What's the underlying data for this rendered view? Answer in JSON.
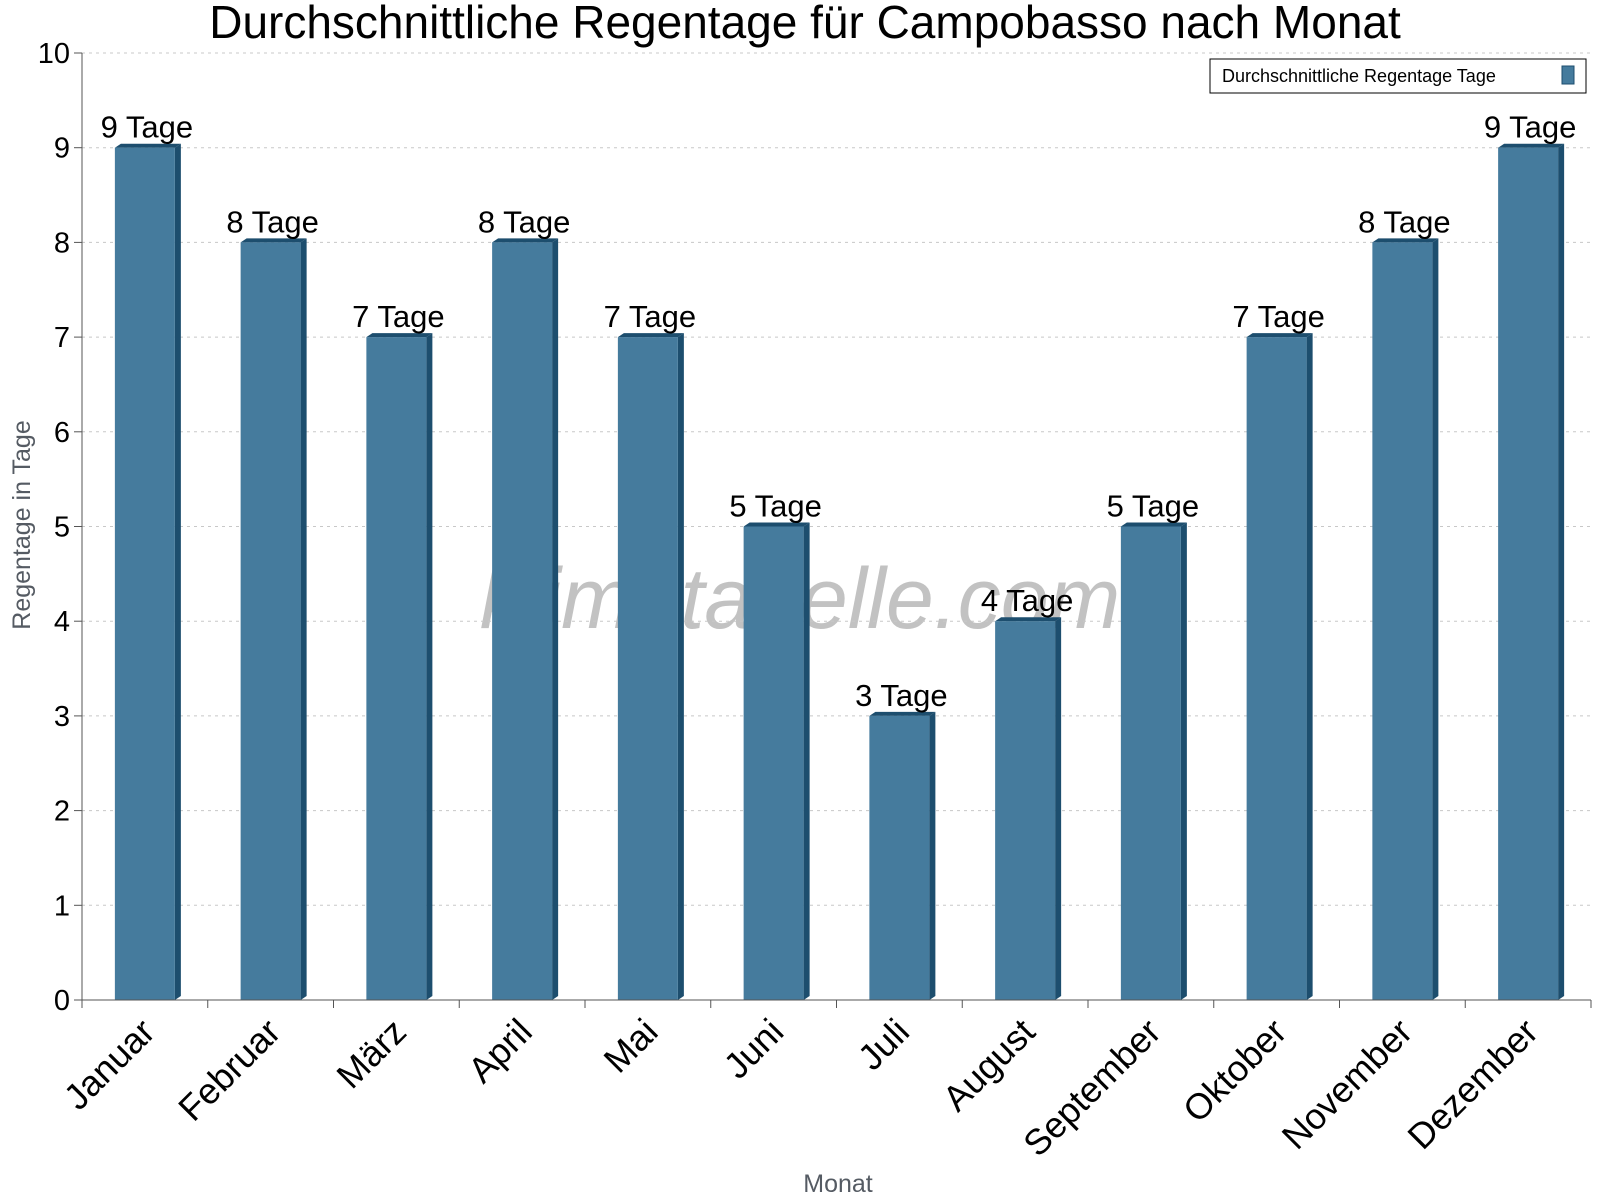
{
  "chart_data": {
    "type": "bar",
    "title": "Durchschnittliche Regentage für Campobasso nach Monat",
    "xlabel": "Monat",
    "ylabel": "Regentage in Tage",
    "categories": [
      "Januar",
      "Februar",
      "März",
      "April",
      "Mai",
      "Juni",
      "Juli",
      "August",
      "September",
      "Oktober",
      "November",
      "Dezember"
    ],
    "series": [
      {
        "name": "Durchschnittliche Regentage Tage",
        "values": [
          9,
          8,
          7,
          8,
          7,
          5,
          3,
          4,
          5,
          7,
          8,
          9
        ],
        "data_labels": [
          "9 Tage",
          "8 Tage",
          "7 Tage",
          "8 Tage",
          "7 Tage",
          "5 Tage",
          "3 Tage",
          "4 Tage",
          "5 Tage",
          "7 Tage",
          "8 Tage",
          "9 Tage"
        ],
        "color": "#457b9d"
      }
    ],
    "ylim": [
      0,
      10
    ],
    "yticks": [
      0,
      1,
      2,
      3,
      4,
      5,
      6,
      7,
      8,
      9,
      10
    ],
    "grid": true,
    "legend_position": "top-right"
  },
  "watermark": "klimatabelle.com",
  "colors": {
    "bar": "#457b9d",
    "bar_shade": "#1d4e6e",
    "grid": "#c8c8c8",
    "axis": "#555555"
  }
}
